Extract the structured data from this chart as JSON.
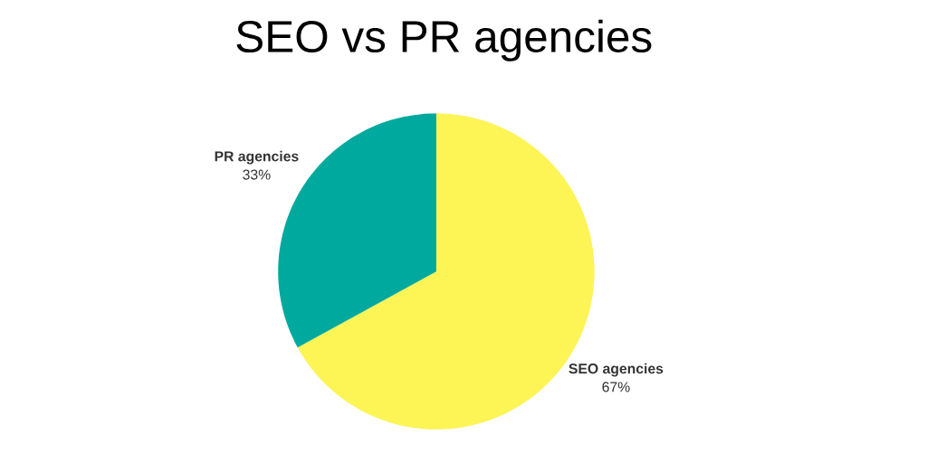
{
  "chart_data": {
    "type": "pie",
    "title": "SEO vs PR agencies",
    "categories": [
      "SEO agencies",
      "PR agencies"
    ],
    "values": [
      67,
      33
    ],
    "colors": [
      "#fdf456",
      "#00a99d"
    ],
    "value_labels": [
      "67%",
      "33%"
    ]
  }
}
